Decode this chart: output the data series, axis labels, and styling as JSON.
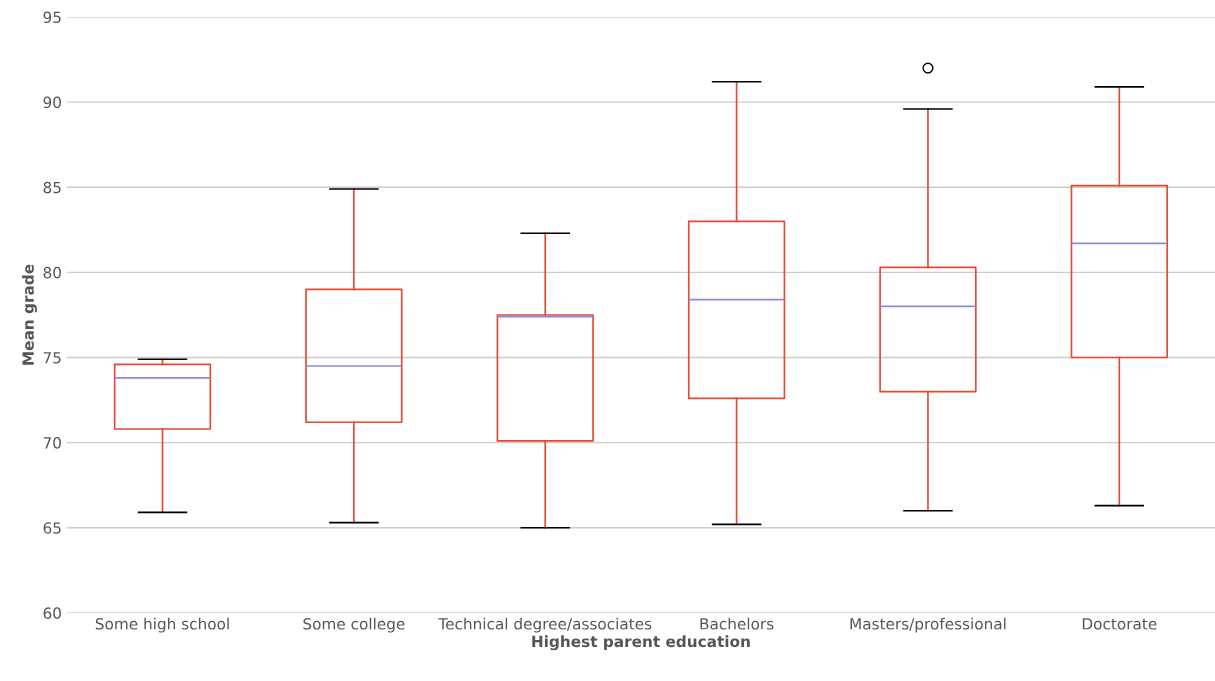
{
  "chart_data": {
    "type": "box",
    "xlabel": "Highest parent education",
    "ylabel": "Mean grade",
    "categories": [
      "Some high school",
      "Some college",
      "Technical degree/associates",
      "Bachelors",
      "Masters/professional",
      "Doctorate"
    ],
    "series": [
      {
        "color": "#e24a33",
        "boxes": [
          {
            "low": 65.9,
            "q1": 70.8,
            "median": 73.8,
            "q3": 74.6,
            "high": 74.9
          },
          {
            "low": 65.3,
            "q1": 71.2,
            "median": 74.5,
            "q3": 79.0,
            "high": 84.9
          },
          {
            "low": 65.0,
            "q1": 70.1,
            "median": 77.4,
            "q3": 77.5,
            "high": 82.3
          },
          {
            "low": 65.2,
            "q1": 72.6,
            "median": 78.4,
            "q3": 83.0,
            "high": 91.2
          },
          {
            "low": 66.0,
            "q1": 73.0,
            "median": 78.0,
            "q3": 80.3,
            "high": 89.6,
            "outliers": [
              92.0
            ]
          },
          {
            "low": 66.3,
            "q1": 75.0,
            "median": 81.7,
            "q3": 85.1,
            "high": 90.9
          }
        ]
      }
    ],
    "ylim": [
      60,
      95
    ],
    "yticks": [
      60,
      65,
      70,
      75,
      80,
      85,
      90,
      95
    ],
    "grid": "y"
  }
}
